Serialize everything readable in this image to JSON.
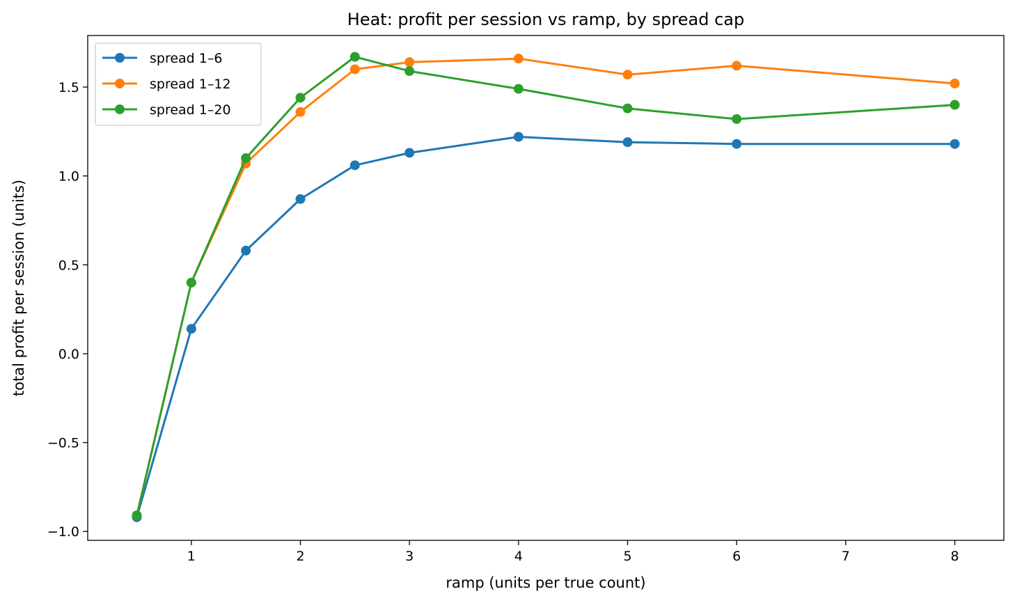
{
  "chart_data": {
    "type": "line",
    "title": "Heat: profit per session vs ramp, by spread cap",
    "xlabel": "ramp (units per true count)",
    "ylabel": "total profit per session (units)",
    "x": [
      0.5,
      1,
      1.5,
      2,
      2.5,
      3,
      4,
      5,
      6,
      8
    ],
    "xlim": [
      0.05,
      8.45
    ],
    "ylim": [
      -1.05,
      1.79
    ],
    "xticks": [
      1,
      2,
      3,
      4,
      5,
      6,
      7,
      8
    ],
    "xtick_labels": [
      "1",
      "2",
      "3",
      "4",
      "5",
      "6",
      "7",
      "8"
    ],
    "yticks": [
      -1.0,
      -0.5,
      0.0,
      0.5,
      1.0,
      1.5
    ],
    "ytick_labels": [
      "−1.0",
      "−0.5",
      "0.0",
      "0.5",
      "1.0",
      "1.5"
    ],
    "grid": false,
    "legend_position": "top-left",
    "series": [
      {
        "name": "spread 1–6",
        "color": "#1f77b4",
        "marker": "circle",
        "values": [
          -0.92,
          0.14,
          0.58,
          0.87,
          1.06,
          1.13,
          1.22,
          1.19,
          1.18,
          1.18
        ]
      },
      {
        "name": "spread 1–12",
        "color": "#ff7f0e",
        "marker": "circle",
        "values": [
          -0.91,
          0.4,
          1.07,
          1.36,
          1.6,
          1.64,
          1.66,
          1.57,
          1.62,
          1.52
        ]
      },
      {
        "name": "spread 1–20",
        "color": "#2ca02c",
        "marker": "circle",
        "values": [
          -0.91,
          0.4,
          1.1,
          1.44,
          1.67,
          1.59,
          1.49,
          1.38,
          1.32,
          1.4
        ]
      }
    ]
  }
}
